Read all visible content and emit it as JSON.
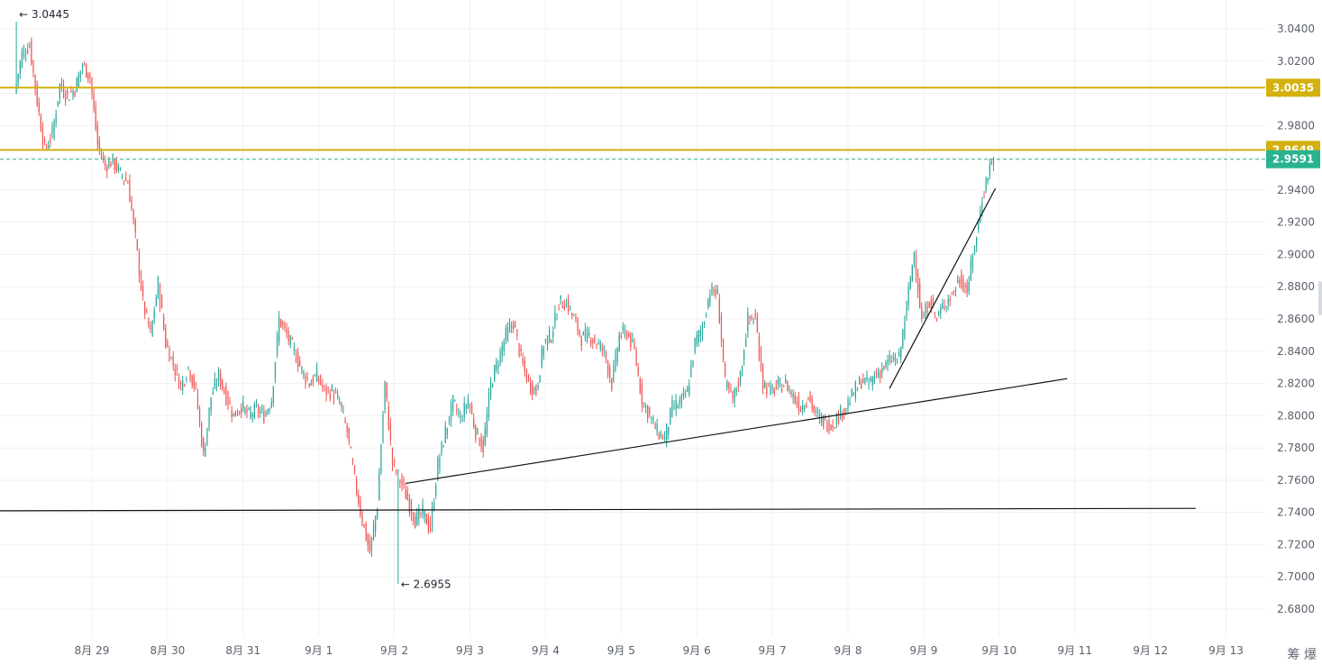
{
  "chart_data": {
    "type": "candlestick",
    "title": "",
    "xlabel": "",
    "ylabel": "",
    "ylim": [
      2.675,
      3.05
    ],
    "y_ticks": [
      "3.0400",
      "3.0200",
      "3.0000",
      "2.9800",
      "2.9600",
      "2.9400",
      "2.9200",
      "2.9000",
      "2.8800",
      "2.8600",
      "2.8400",
      "2.8200",
      "2.8000",
      "2.7800",
      "2.7600",
      "2.7400",
      "2.7200",
      "2.7000",
      "2.6800"
    ],
    "x_ticks": [
      "8月 29",
      "8月 30",
      "8月 31",
      "9月 1",
      "9月 2",
      "9月 3",
      "9月 4",
      "9月 5",
      "9月 6",
      "9月 7",
      "9月 8",
      "9月 9",
      "9月 10",
      "9月 11",
      "9月 12",
      "9月 13"
    ],
    "x_range_days": [
      -1.3,
      14.6
    ],
    "grid": true,
    "up_color": "#26a69a",
    "down_color": "#ef5350",
    "candles_anchor": [
      [
        -1.0,
        3.0
      ],
      [
        -0.9,
        3.025
      ],
      [
        -0.8,
        3.03
      ],
      [
        -0.7,
        2.995
      ],
      [
        -0.6,
        2.965
      ],
      [
        -0.5,
        2.975
      ],
      [
        -0.4,
        3.005
      ],
      [
        -0.3,
        2.998
      ],
      [
        -0.2,
        3.003
      ],
      [
        -0.1,
        3.018
      ],
      [
        0.0,
        3.01
      ],
      [
        0.1,
        2.968
      ],
      [
        0.2,
        2.955
      ],
      [
        0.3,
        2.958
      ],
      [
        0.4,
        2.95
      ],
      [
        0.5,
        2.945
      ],
      [
        0.6,
        2.91
      ],
      [
        0.7,
        2.87
      ],
      [
        0.8,
        2.85
      ],
      [
        0.9,
        2.882
      ],
      [
        1.0,
        2.845
      ],
      [
        1.1,
        2.832
      ],
      [
        1.2,
        2.818
      ],
      [
        1.3,
        2.83
      ],
      [
        1.4,
        2.815
      ],
      [
        1.5,
        2.775
      ],
      [
        1.6,
        2.812
      ],
      [
        1.7,
        2.825
      ],
      [
        1.8,
        2.812
      ],
      [
        1.9,
        2.8
      ],
      [
        2.0,
        2.806
      ],
      [
        2.1,
        2.8
      ],
      [
        2.2,
        2.804
      ],
      [
        2.3,
        2.8
      ],
      [
        2.4,
        2.81
      ],
      [
        2.5,
        2.86
      ],
      [
        2.6,
        2.85
      ],
      [
        2.7,
        2.84
      ],
      [
        2.8,
        2.828
      ],
      [
        2.9,
        2.82
      ],
      [
        3.0,
        2.825
      ],
      [
        3.1,
        2.815
      ],
      [
        3.2,
        2.815
      ],
      [
        3.3,
        2.808
      ],
      [
        3.4,
        2.79
      ],
      [
        3.5,
        2.76
      ],
      [
        3.6,
        2.735
      ],
      [
        3.7,
        2.715
      ],
      [
        3.8,
        2.745
      ],
      [
        3.9,
        2.82
      ],
      [
        4.0,
        2.77
      ],
      [
        4.1,
        2.76
      ],
      [
        4.2,
        2.748
      ],
      [
        4.3,
        2.735
      ],
      [
        4.4,
        2.74
      ],
      [
        4.5,
        2.73
      ],
      [
        4.6,
        2.77
      ],
      [
        4.7,
        2.79
      ],
      [
        4.8,
        2.808
      ],
      [
        4.9,
        2.798
      ],
      [
        5.0,
        2.81
      ],
      [
        5.1,
        2.79
      ],
      [
        5.2,
        2.78
      ],
      [
        5.3,
        2.82
      ],
      [
        5.4,
        2.835
      ],
      [
        5.5,
        2.85
      ],
      [
        5.6,
        2.858
      ],
      [
        5.7,
        2.835
      ],
      [
        5.8,
        2.82
      ],
      [
        5.9,
        2.815
      ],
      [
        6.0,
        2.845
      ],
      [
        6.1,
        2.85
      ],
      [
        6.2,
        2.87
      ],
      [
        6.3,
        2.87
      ],
      [
        6.4,
        2.86
      ],
      [
        6.5,
        2.848
      ],
      [
        6.6,
        2.85
      ],
      [
        6.7,
        2.845
      ],
      [
        6.8,
        2.84
      ],
      [
        6.9,
        2.82
      ],
      [
        7.0,
        2.85
      ],
      [
        7.1,
        2.852
      ],
      [
        7.2,
        2.84
      ],
      [
        7.3,
        2.81
      ],
      [
        7.4,
        2.8
      ],
      [
        7.5,
        2.79
      ],
      [
        7.6,
        2.786
      ],
      [
        7.7,
        2.805
      ],
      [
        7.8,
        2.808
      ],
      [
        7.9,
        2.815
      ],
      [
        8.0,
        2.845
      ],
      [
        8.1,
        2.855
      ],
      [
        8.2,
        2.878
      ],
      [
        8.3,
        2.875
      ],
      [
        8.4,
        2.82
      ],
      [
        8.5,
        2.81
      ],
      [
        8.6,
        2.825
      ],
      [
        8.7,
        2.86
      ],
      [
        8.8,
        2.86
      ],
      [
        8.9,
        2.82
      ],
      [
        9.0,
        2.815
      ],
      [
        9.1,
        2.818
      ],
      [
        9.2,
        2.82
      ],
      [
        9.3,
        2.812
      ],
      [
        9.4,
        2.805
      ],
      [
        9.5,
        2.812
      ],
      [
        9.6,
        2.8
      ],
      [
        9.7,
        2.797
      ],
      [
        9.8,
        2.794
      ],
      [
        9.9,
        2.8
      ],
      [
        10.0,
        2.806
      ],
      [
        10.1,
        2.814
      ],
      [
        10.2,
        2.822
      ],
      [
        10.3,
        2.82
      ],
      [
        10.4,
        2.826
      ],
      [
        10.5,
        2.83
      ],
      [
        10.6,
        2.835
      ],
      [
        10.7,
        2.835
      ],
      [
        10.8,
        2.868
      ],
      [
        10.9,
        2.902
      ],
      [
        11.0,
        2.858
      ],
      [
        11.1,
        2.872
      ],
      [
        11.2,
        2.86
      ],
      [
        11.3,
        2.87
      ],
      [
        11.4,
        2.875
      ],
      [
        11.5,
        2.885
      ],
      [
        11.6,
        2.878
      ],
      [
        11.7,
        2.905
      ],
      [
        11.8,
        2.935
      ],
      [
        11.9,
        2.955
      ],
      [
        11.95,
        2.959
      ]
    ],
    "horizontal_lines": [
      {
        "value": 3.0035,
        "color": "#d4b10f",
        "label": "3.0035"
      },
      {
        "value": 2.9649,
        "color": "#d4b10f",
        "label": "2.9649"
      }
    ],
    "current_price": {
      "value": 2.9591,
      "label": "2.9591",
      "color": "#2bb38f"
    },
    "trendlines": [
      {
        "x1": -1.3,
        "y1": 2.741,
        "x2": 14.6,
        "y2": 2.7425,
        "color": "#111111"
      },
      {
        "x1": 4.15,
        "y1": 2.758,
        "x2": 12.9,
        "y2": 2.823,
        "color": "#111111"
      },
      {
        "x1": 10.55,
        "y1": 2.817,
        "x2": 11.95,
        "y2": 2.941,
        "color": "#111111"
      }
    ],
    "annotations": [
      {
        "x": -1.0,
        "y": 3.0445,
        "text": "← 3.0445",
        "anchor": "above"
      },
      {
        "x": 4.05,
        "y": 2.6955,
        "text": "← 2.6955",
        "anchor": "below"
      }
    ]
  },
  "watermark": "筹 爆"
}
